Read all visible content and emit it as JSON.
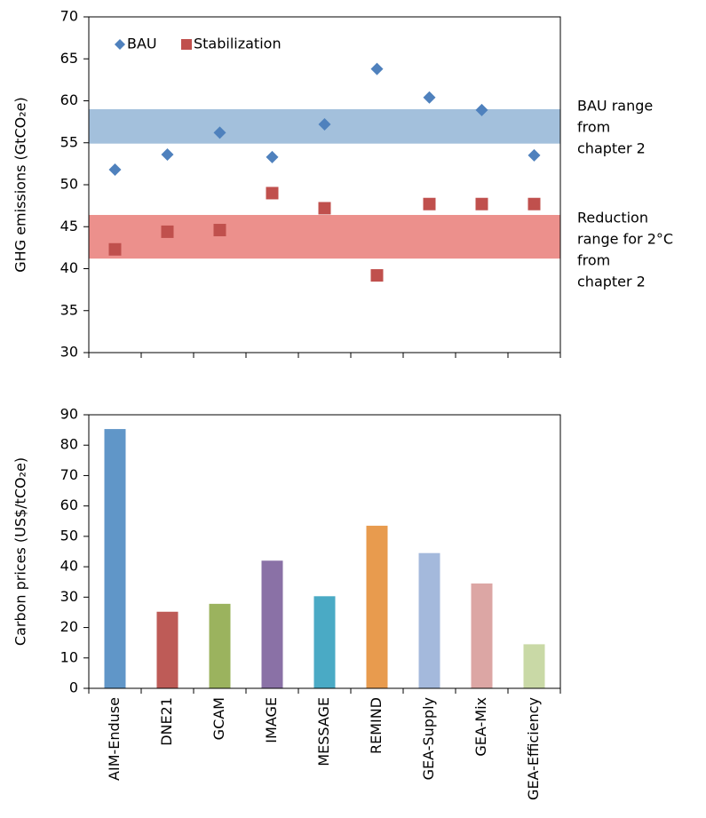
{
  "chart_data": [
    {
      "type": "scatter",
      "ylabel": "GHG emissions (GtCO₂e)",
      "ylim": [
        30,
        70
      ],
      "yticks": [
        30,
        35,
        40,
        45,
        50,
        55,
        60,
        65,
        70
      ],
      "series": [
        {
          "name": "BAU",
          "color": "#4f81bd",
          "marker": "diamond",
          "values": [
            51.8,
            53.6,
            56.2,
            53.3,
            57.2,
            63.8,
            60.4,
            58.9,
            53.5
          ]
        },
        {
          "name": "Stabilization",
          "color": "#c0504d",
          "marker": "square",
          "values": [
            42.3,
            44.4,
            44.6,
            49.0,
            47.2,
            39.2,
            47.7,
            47.7,
            47.7
          ]
        }
      ],
      "bands": [
        {
          "range": [
            54.9,
            59.0
          ],
          "color": "#a3c0dc",
          "label": [
            "BAU range",
            "from",
            "chapter 2"
          ]
        },
        {
          "range": [
            41.2,
            46.4
          ],
          "color": "#ec908c",
          "label": [
            "Reduction",
            "range for 2°C",
            "from",
            "chapter 2"
          ]
        }
      ]
    },
    {
      "type": "bar",
      "ylabel": "Carbon prices (US$/tCO₂e)",
      "categories": [
        "AIM-Enduse",
        "DNE21",
        "GCAM",
        "IMAGE",
        "MESSAGE",
        "REMIND",
        "GEA-Supply",
        "GEA-Mix",
        "GEA-Efficiency"
      ],
      "values": [
        85.3,
        25.2,
        27.8,
        42.0,
        30.3,
        53.5,
        44.5,
        34.5,
        14.5
      ],
      "colors": [
        "#6096c8",
        "#be5b57",
        "#9bb35e",
        "#8a71a6",
        "#4aaac5",
        "#e89b4e",
        "#a4b9dc",
        "#dca6a4",
        "#c9d9a6"
      ],
      "ylim": [
        0,
        90
      ],
      "yticks": [
        0,
        10,
        20,
        30,
        40,
        50,
        60,
        70,
        80,
        90
      ]
    }
  ]
}
